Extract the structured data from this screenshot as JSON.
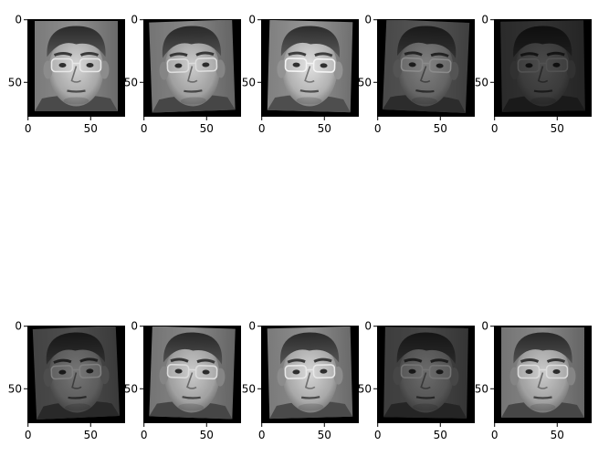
{
  "figure": {
    "background": "#ffffff",
    "frame_color": "#000000",
    "image_extent": 78,
    "x_ticks": [
      {
        "value": 0,
        "label": "0"
      },
      {
        "value": 50,
        "label": "50"
      }
    ],
    "y_ticks": [
      {
        "value": 0,
        "label": "0"
      },
      {
        "value": 50,
        "label": "50"
      }
    ],
    "rows": [
      {
        "panels": [
          {
            "brightness": 1.0,
            "tilt_deg": 0.0
          },
          {
            "brightness": 0.95,
            "tilt_deg": -2.0
          },
          {
            "brightness": 1.05,
            "tilt_deg": 1.5
          },
          {
            "brightness": 0.6,
            "tilt_deg": 2.5
          },
          {
            "brightness": 0.35,
            "tilt_deg": -1.0
          }
        ]
      },
      {
        "panels": [
          {
            "brightness": 0.55,
            "tilt_deg": -2.5
          },
          {
            "brightness": 0.95,
            "tilt_deg": 2.0
          },
          {
            "brightness": 1.0,
            "tilt_deg": -1.5
          },
          {
            "brightness": 0.5,
            "tilt_deg": 1.0
          },
          {
            "brightness": 0.95,
            "tilt_deg": 0.0
          }
        ]
      }
    ]
  }
}
